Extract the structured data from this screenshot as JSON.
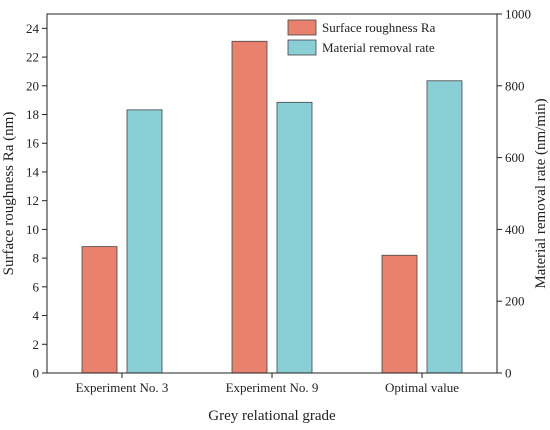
{
  "chart_data": {
    "type": "bar",
    "title": "",
    "xlabel": "Grey relational grade",
    "ylabel": "Surface roughness Ra (nm)",
    "y2label": "Material removal rate  (nm/min)",
    "categories": [
      "Experiment No. 3",
      "Experiment No. 9",
      "Optimal value"
    ],
    "ylim": [
      0,
      25
    ],
    "y2lim": [
      0,
      1000
    ],
    "yticks": [
      "0",
      "2",
      "4",
      "6",
      "8",
      "10",
      "12",
      "14",
      "16",
      "18",
      "20",
      "22",
      "24"
    ],
    "y2ticks": [
      "0",
      "200",
      "400",
      "600",
      "800",
      "1000"
    ],
    "series": [
      {
        "name": "Surface roughness Ra",
        "axis": "left",
        "color": "#E8826E",
        "values": [
          8.8,
          23.1,
          8.2
        ]
      },
      {
        "name": "Material removal rate",
        "axis": "right",
        "color": "#8ACED6",
        "values": [
          733,
          754,
          814
        ]
      }
    ],
    "grid": false,
    "legend_position": "top-right"
  }
}
